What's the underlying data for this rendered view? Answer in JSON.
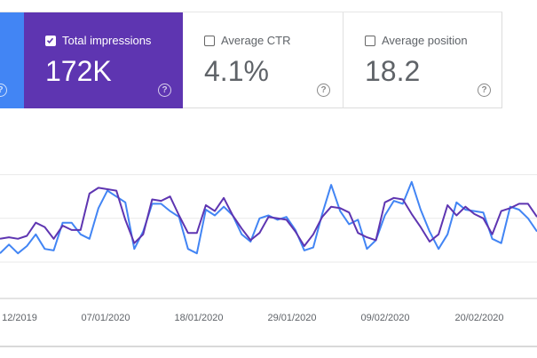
{
  "metrics": {
    "clicks": {
      "help": "?"
    },
    "impressions": {
      "label": "Total impressions",
      "value": "172K",
      "checked": true,
      "color": "#5e35b1",
      "help": "?"
    },
    "ctr": {
      "label": "Average CTR",
      "value": "4.1%",
      "checked": false,
      "help": "?"
    },
    "position": {
      "label": "Average position",
      "value": "18.2",
      "checked": false,
      "help": "?"
    }
  },
  "chart_data": {
    "type": "line",
    "x_tick_labels": [
      "12/2019",
      "07/01/2020",
      "18/01/2020",
      "29/01/2020",
      "09/02/2020",
      "20/02/2020"
    ],
    "grid": true,
    "ylim": [
      0,
      1
    ],
    "series": [
      {
        "color": "#5e35b1",
        "values": [
          0.41,
          0.42,
          0.41,
          0.43,
          0.52,
          0.49,
          0.41,
          0.5,
          0.47,
          0.47,
          0.72,
          0.76,
          0.75,
          0.74,
          0.54,
          0.38,
          0.44,
          0.68,
          0.67,
          0.7,
          0.57,
          0.45,
          0.45,
          0.64,
          0.6,
          0.69,
          0.57,
          0.48,
          0.4,
          0.45,
          0.56,
          0.55,
          0.54,
          0.46,
          0.36,
          0.44,
          0.56,
          0.63,
          0.62,
          0.59,
          0.45,
          0.42,
          0.4,
          0.66,
          0.69,
          0.68,
          0.58,
          0.49,
          0.39,
          0.44,
          0.64,
          0.57,
          0.63,
          0.58,
          0.55,
          0.44,
          0.6,
          0.62,
          0.65,
          0.65,
          0.56
        ]
      },
      {
        "color": "#4285f4",
        "values": [
          0.31,
          0.37,
          0.31,
          0.36,
          0.44,
          0.34,
          0.33,
          0.52,
          0.52,
          0.44,
          0.41,
          0.62,
          0.74,
          0.7,
          0.66,
          0.34,
          0.46,
          0.65,
          0.65,
          0.6,
          0.56,
          0.34,
          0.31,
          0.61,
          0.57,
          0.63,
          0.57,
          0.44,
          0.39,
          0.55,
          0.57,
          0.54,
          0.56,
          0.47,
          0.33,
          0.35,
          0.58,
          0.78,
          0.6,
          0.51,
          0.54,
          0.34,
          0.4,
          0.57,
          0.67,
          0.65,
          0.8,
          0.61,
          0.46,
          0.34,
          0.44,
          0.66,
          0.61,
          0.6,
          0.59,
          0.41,
          0.38,
          0.63,
          0.61,
          0.55,
          0.46
        ]
      }
    ]
  }
}
